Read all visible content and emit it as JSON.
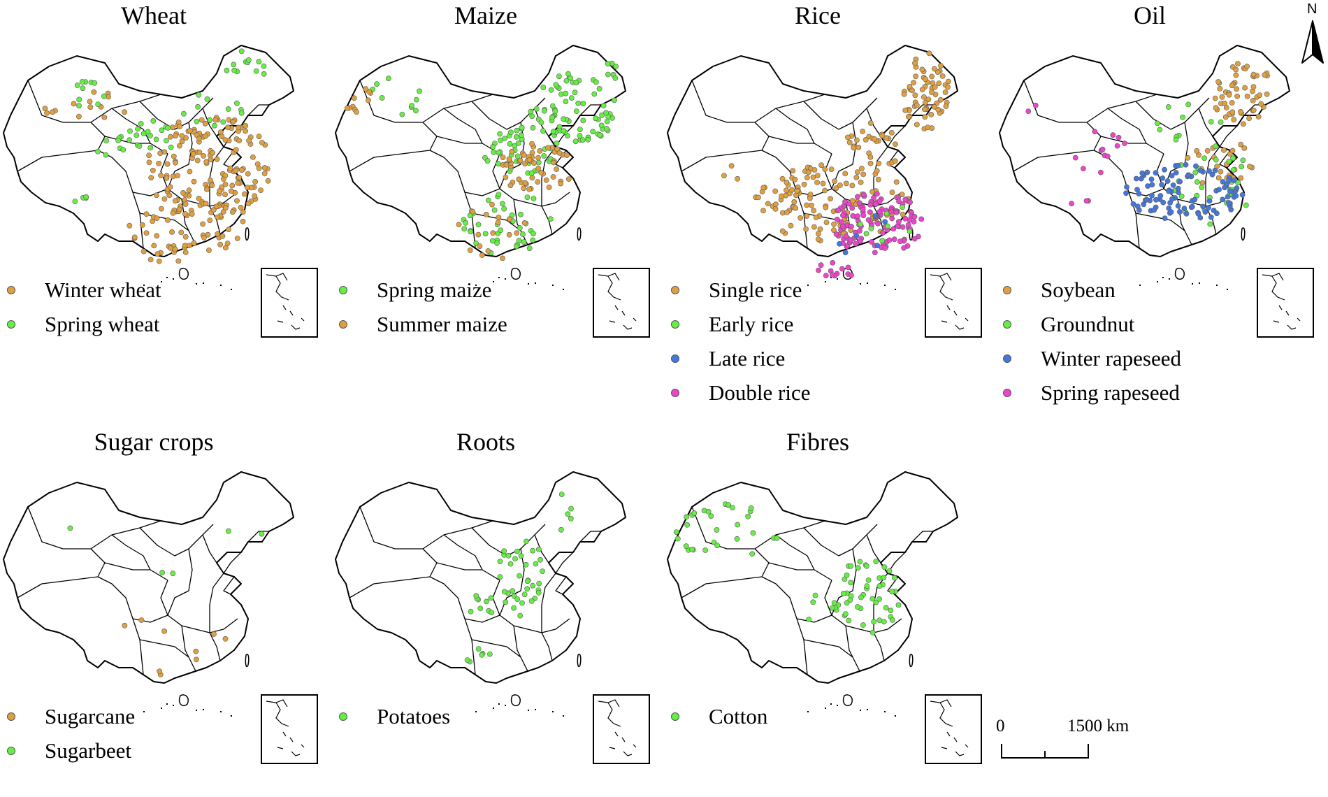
{
  "colors": {
    "orange": "#e0a040",
    "green": "#66ee44",
    "blue": "#4477dd",
    "magenta": "#ee44cc"
  },
  "north_label": "N",
  "scale": {
    "min_label": "0",
    "max_label": "1500 km"
  },
  "panels": [
    {
      "title": "Wheat",
      "legend": [
        {
          "label": "Winter wheat",
          "color": "orange"
        },
        {
          "label": "Spring wheat",
          "color": "green"
        }
      ],
      "clusters": [
        {
          "color": "orange",
          "n": 14,
          "cx": 110,
          "cy": 105,
          "rx": 75,
          "ry": 30,
          "seed": 1
        },
        {
          "color": "orange",
          "n": 175,
          "cx": 300,
          "cy": 195,
          "rx": 90,
          "ry": 75,
          "seed": 2
        },
        {
          "color": "orange",
          "n": 35,
          "cx": 240,
          "cy": 290,
          "rx": 60,
          "ry": 40,
          "seed": 3
        },
        {
          "color": "orange",
          "n": 18,
          "cx": 300,
          "cy": 285,
          "rx": 55,
          "ry": 35,
          "seed": 4
        },
        {
          "color": "green",
          "n": 12,
          "cx": 345,
          "cy": 50,
          "rx": 40,
          "ry": 30,
          "seed": 5
        },
        {
          "color": "green",
          "n": 20,
          "cx": 215,
          "cy": 150,
          "rx": 45,
          "ry": 25,
          "seed": 6
        },
        {
          "color": "green",
          "n": 10,
          "cx": 135,
          "cy": 90,
          "rx": 30,
          "ry": 25,
          "seed": 7
        },
        {
          "color": "green",
          "n": 12,
          "cx": 300,
          "cy": 110,
          "rx": 50,
          "ry": 25,
          "seed": 8
        },
        {
          "color": "green",
          "n": 6,
          "cx": 160,
          "cy": 170,
          "rx": 30,
          "ry": 20,
          "seed": 9
        },
        {
          "color": "green",
          "n": 4,
          "cx": 115,
          "cy": 240,
          "rx": 20,
          "ry": 5,
          "seed": 10
        }
      ]
    },
    {
      "title": "Maize",
      "legend": [
        {
          "label": "Spring maize",
          "color": "green"
        },
        {
          "label": "Summer maize",
          "color": "orange"
        }
      ],
      "clusters": [
        {
          "color": "green",
          "n": 75,
          "cx": 345,
          "cy": 110,
          "rx": 65,
          "ry": 50,
          "seed": 11
        },
        {
          "color": "green",
          "n": 45,
          "cx": 270,
          "cy": 170,
          "rx": 55,
          "ry": 35,
          "seed": 12
        },
        {
          "color": "green",
          "n": 40,
          "cx": 250,
          "cy": 275,
          "rx": 65,
          "ry": 45,
          "seed": 13
        },
        {
          "color": "green",
          "n": 10,
          "cx": 90,
          "cy": 95,
          "rx": 50,
          "ry": 30,
          "seed": 14
        },
        {
          "color": "green",
          "n": 8,
          "cx": 390,
          "cy": 60,
          "rx": 30,
          "ry": 25,
          "seed": 15
        },
        {
          "color": "orange",
          "n": 55,
          "cx": 290,
          "cy": 195,
          "rx": 55,
          "ry": 35,
          "seed": 16
        },
        {
          "color": "orange",
          "n": 10,
          "cx": 35,
          "cy": 100,
          "rx": 25,
          "ry": 25,
          "seed": 17
        },
        {
          "color": "orange",
          "n": 18,
          "cx": 230,
          "cy": 285,
          "rx": 55,
          "ry": 45,
          "seed": 18
        }
      ]
    },
    {
      "title": "Rice",
      "legend": [
        {
          "label": "Single rice",
          "color": "orange"
        },
        {
          "label": "Early rice",
          "color": "green"
        },
        {
          "label": "Late rice",
          "color": "blue"
        },
        {
          "label": "Double rice",
          "color": "magenta"
        }
      ],
      "clusters": [
        {
          "color": "orange",
          "n": 65,
          "cx": 375,
          "cy": 85,
          "rx": 35,
          "ry": 55,
          "seed": 21
        },
        {
          "color": "orange",
          "n": 130,
          "cx": 240,
          "cy": 245,
          "rx": 110,
          "ry": 55,
          "seed": 22
        },
        {
          "color": "orange",
          "n": 30,
          "cx": 300,
          "cy": 160,
          "rx": 40,
          "ry": 40,
          "seed": 23
        },
        {
          "color": "orange",
          "n": 3,
          "cx": 90,
          "cy": 180,
          "rx": 25,
          "ry": 50,
          "seed": 24
        },
        {
          "color": "magenta",
          "n": 120,
          "cx": 305,
          "cy": 275,
          "rx": 65,
          "ry": 45,
          "seed": 25
        },
        {
          "color": "magenta",
          "n": 12,
          "cx": 250,
          "cy": 340,
          "rx": 30,
          "ry": 12,
          "seed": 26
        },
        {
          "color": "green",
          "n": 8,
          "cx": 320,
          "cy": 270,
          "rx": 40,
          "ry": 30,
          "seed": 27
        },
        {
          "color": "blue",
          "n": 6,
          "cx": 280,
          "cy": 290,
          "rx": 50,
          "ry": 30,
          "seed": 28
        }
      ]
    },
    {
      "title": "Oil",
      "legend": [
        {
          "label": "Soybean",
          "color": "orange"
        },
        {
          "label": "Groundnut",
          "color": "green"
        },
        {
          "label": "Winter rapeseed",
          "color": "blue"
        },
        {
          "label": "Spring rapeseed",
          "color": "magenta"
        }
      ],
      "clusters": [
        {
          "color": "orange",
          "n": 55,
          "cx": 355,
          "cy": 90,
          "rx": 45,
          "ry": 45,
          "seed": 31
        },
        {
          "color": "orange",
          "n": 25,
          "cx": 320,
          "cy": 190,
          "rx": 50,
          "ry": 40,
          "seed": 32
        },
        {
          "color": "green",
          "n": 30,
          "cx": 310,
          "cy": 220,
          "rx": 55,
          "ry": 60,
          "seed": 33
        },
        {
          "color": "green",
          "n": 10,
          "cx": 280,
          "cy": 130,
          "rx": 50,
          "ry": 30,
          "seed": 34
        },
        {
          "color": "blue",
          "n": 100,
          "cx": 270,
          "cy": 230,
          "rx": 85,
          "ry": 40,
          "seed": 35
        },
        {
          "color": "magenta",
          "n": 12,
          "cx": 150,
          "cy": 170,
          "rx": 45,
          "ry": 35,
          "seed": 36
        },
        {
          "color": "magenta",
          "n": 2,
          "cx": 60,
          "cy": 110,
          "rx": 15,
          "ry": 10,
          "seed": 37
        },
        {
          "color": "magenta",
          "n": 3,
          "cx": 130,
          "cy": 245,
          "rx": 25,
          "ry": 8,
          "seed": 38
        }
      ]
    },
    {
      "title": "Sugar crops",
      "legend": [
        {
          "label": "Sugarcane",
          "color": "orange"
        },
        {
          "label": "Sugarbeet",
          "color": "green"
        }
      ],
      "clusters": [
        {
          "color": "orange",
          "n": 9,
          "cx": 250,
          "cy": 270,
          "rx": 105,
          "ry": 45,
          "seed": 41
        },
        {
          "color": "green",
          "n": 1,
          "cx": 100,
          "cy": 100,
          "rx": 1,
          "ry": 1,
          "seed": 42
        },
        {
          "color": "green",
          "n": 2,
          "cx": 240,
          "cy": 165,
          "rx": 10,
          "ry": 4,
          "seed": 43
        },
        {
          "color": "green",
          "n": 2,
          "cx": 350,
          "cy": 105,
          "rx": 40,
          "ry": 30,
          "seed": 44
        }
      ]
    },
    {
      "title": "Roots",
      "legend": [
        {
          "label": "Potatoes",
          "color": "green"
        }
      ],
      "clusters": [
        {
          "color": "green",
          "n": 35,
          "cx": 270,
          "cy": 170,
          "rx": 35,
          "ry": 60,
          "seed": 51
        },
        {
          "color": "green",
          "n": 10,
          "cx": 220,
          "cy": 210,
          "rx": 30,
          "ry": 15,
          "seed": 52
        },
        {
          "color": "green",
          "n": 6,
          "cx": 210,
          "cy": 280,
          "rx": 20,
          "ry": 20,
          "seed": 53
        },
        {
          "color": "green",
          "n": 5,
          "cx": 330,
          "cy": 70,
          "rx": 20,
          "ry": 40,
          "seed": 54
        }
      ]
    },
    {
      "title": "Fibres",
      "legend": [
        {
          "label": "Cotton",
          "color": "green"
        }
      ],
      "clusters": [
        {
          "color": "green",
          "n": 30,
          "cx": 90,
          "cy": 105,
          "rx": 75,
          "ry": 40,
          "seed": 61
        },
        {
          "color": "green",
          "n": 50,
          "cx": 290,
          "cy": 200,
          "rx": 50,
          "ry": 55,
          "seed": 62
        },
        {
          "color": "green",
          "n": 5,
          "cx": 220,
          "cy": 215,
          "rx": 25,
          "ry": 25,
          "seed": 63
        }
      ]
    }
  ]
}
